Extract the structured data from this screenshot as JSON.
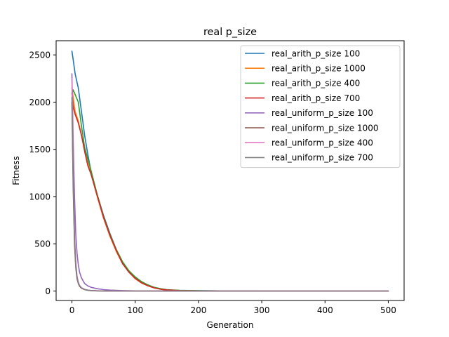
{
  "chart_data": {
    "type": "line",
    "title": "real p_size",
    "xlabel": "Generation",
    "ylabel": "Fitness",
    "xlim": [
      -25,
      525
    ],
    "ylim": [
      -100,
      2650
    ],
    "xticks": [
      0,
      100,
      200,
      300,
      400,
      500
    ],
    "yticks": [
      0,
      500,
      1000,
      1500,
      2000,
      2500
    ],
    "grid": false,
    "legend_position": "upper-right",
    "series": [
      {
        "name": "real_arith_p_size 100",
        "color": "#1f77b4",
        "points": [
          [
            0,
            2540
          ],
          [
            2,
            2450
          ],
          [
            5,
            2300
          ],
          [
            10,
            2150
          ],
          [
            15,
            1900
          ],
          [
            20,
            1650
          ],
          [
            25,
            1450
          ],
          [
            30,
            1270
          ],
          [
            40,
            1020
          ],
          [
            50,
            800
          ],
          [
            60,
            610
          ],
          [
            70,
            440
          ],
          [
            80,
            300
          ],
          [
            90,
            210
          ],
          [
            100,
            140
          ],
          [
            110,
            90
          ],
          [
            120,
            60
          ],
          [
            130,
            35
          ],
          [
            140,
            20
          ],
          [
            150,
            12
          ],
          [
            170,
            6
          ],
          [
            200,
            3
          ],
          [
            250,
            1
          ],
          [
            300,
            0
          ],
          [
            400,
            0
          ],
          [
            500,
            0
          ]
        ]
      },
      {
        "name": "real_arith_p_size 1000",
        "color": "#ff7f0e",
        "points": [
          [
            0,
            2150
          ],
          [
            2,
            2050
          ],
          [
            5,
            1900
          ],
          [
            10,
            1800
          ],
          [
            15,
            1650
          ],
          [
            20,
            1500
          ],
          [
            25,
            1350
          ],
          [
            30,
            1250
          ],
          [
            40,
            1000
          ],
          [
            50,
            770
          ],
          [
            60,
            580
          ],
          [
            70,
            420
          ],
          [
            80,
            290
          ],
          [
            90,
            200
          ],
          [
            100,
            130
          ],
          [
            110,
            85
          ],
          [
            120,
            55
          ],
          [
            130,
            33
          ],
          [
            140,
            20
          ],
          [
            150,
            12
          ],
          [
            170,
            5
          ],
          [
            200,
            2
          ],
          [
            250,
            1
          ],
          [
            300,
            0
          ],
          [
            400,
            0
          ],
          [
            500,
            0
          ]
        ]
      },
      {
        "name": "real_arith_p_size 400",
        "color": "#2ca02c",
        "points": [
          [
            0,
            2080
          ],
          [
            2,
            2130
          ],
          [
            5,
            2080
          ],
          [
            10,
            2000
          ],
          [
            15,
            1750
          ],
          [
            20,
            1520
          ],
          [
            25,
            1400
          ],
          [
            30,
            1280
          ],
          [
            40,
            1020
          ],
          [
            50,
            790
          ],
          [
            60,
            600
          ],
          [
            70,
            440
          ],
          [
            80,
            310
          ],
          [
            90,
            215
          ],
          [
            100,
            150
          ],
          [
            110,
            100
          ],
          [
            120,
            65
          ],
          [
            130,
            40
          ],
          [
            140,
            25
          ],
          [
            150,
            15
          ],
          [
            170,
            7
          ],
          [
            200,
            3
          ],
          [
            250,
            1
          ],
          [
            300,
            0
          ],
          [
            400,
            0
          ],
          [
            500,
            0
          ]
        ]
      },
      {
        "name": "real_arith_p_size 700",
        "color": "#d62728",
        "points": [
          [
            0,
            2100
          ],
          [
            2,
            1950
          ],
          [
            5,
            1870
          ],
          [
            10,
            1780
          ],
          [
            15,
            1650
          ],
          [
            20,
            1480
          ],
          [
            25,
            1330
          ],
          [
            30,
            1240
          ],
          [
            40,
            1010
          ],
          [
            50,
            780
          ],
          [
            60,
            590
          ],
          [
            70,
            430
          ],
          [
            80,
            290
          ],
          [
            90,
            200
          ],
          [
            100,
            135
          ],
          [
            110,
            88
          ],
          [
            120,
            56
          ],
          [
            130,
            34
          ],
          [
            140,
            20
          ],
          [
            150,
            12
          ],
          [
            170,
            5
          ],
          [
            200,
            2
          ],
          [
            250,
            1
          ],
          [
            300,
            0
          ],
          [
            400,
            0
          ],
          [
            500,
            0
          ]
        ]
      },
      {
        "name": "real_uniform_p_size 100",
        "color": "#9467bd",
        "points": [
          [
            0,
            2300
          ],
          [
            2,
            1600
          ],
          [
            4,
            1000
          ],
          [
            6,
            600
          ],
          [
            8,
            400
          ],
          [
            10,
            280
          ],
          [
            12,
            200
          ],
          [
            15,
            140
          ],
          [
            20,
            80
          ],
          [
            25,
            55
          ],
          [
            30,
            40
          ],
          [
            40,
            25
          ],
          [
            50,
            15
          ],
          [
            60,
            10
          ],
          [
            80,
            5
          ],
          [
            100,
            2
          ],
          [
            150,
            1
          ],
          [
            200,
            0
          ],
          [
            300,
            0
          ],
          [
            400,
            0
          ],
          [
            500,
            0
          ]
        ]
      },
      {
        "name": "real_uniform_p_size 1000",
        "color": "#8c564b",
        "points": [
          [
            0,
            2000
          ],
          [
            2,
            1100
          ],
          [
            4,
            500
          ],
          [
            6,
            250
          ],
          [
            8,
            130
          ],
          [
            10,
            80
          ],
          [
            12,
            50
          ],
          [
            15,
            30
          ],
          [
            20,
            15
          ],
          [
            25,
            8
          ],
          [
            30,
            5
          ],
          [
            40,
            2
          ],
          [
            50,
            1
          ],
          [
            70,
            0
          ],
          [
            100,
            0
          ],
          [
            200,
            0
          ],
          [
            300,
            0
          ],
          [
            400,
            0
          ],
          [
            500,
            0
          ]
        ]
      },
      {
        "name": "real_uniform_p_size 400",
        "color": "#e377c2",
        "points": [
          [
            0,
            2250
          ],
          [
            2,
            1300
          ],
          [
            4,
            600
          ],
          [
            6,
            300
          ],
          [
            8,
            160
          ],
          [
            10,
            95
          ],
          [
            12,
            60
          ],
          [
            15,
            35
          ],
          [
            20,
            18
          ],
          [
            25,
            10
          ],
          [
            30,
            6
          ],
          [
            40,
            3
          ],
          [
            50,
            1
          ],
          [
            70,
            0
          ],
          [
            100,
            0
          ],
          [
            200,
            0
          ],
          [
            300,
            0
          ],
          [
            400,
            0
          ],
          [
            500,
            0
          ]
        ]
      },
      {
        "name": "real_uniform_p_size 700",
        "color": "#7f7f7f",
        "points": [
          [
            0,
            2050
          ],
          [
            2,
            1200
          ],
          [
            4,
            550
          ],
          [
            6,
            280
          ],
          [
            8,
            140
          ],
          [
            10,
            85
          ],
          [
            12,
            55
          ],
          [
            15,
            32
          ],
          [
            20,
            16
          ],
          [
            25,
            9
          ],
          [
            30,
            5
          ],
          [
            40,
            2
          ],
          [
            50,
            1
          ],
          [
            70,
            0
          ],
          [
            100,
            0
          ],
          [
            200,
            0
          ],
          [
            300,
            0
          ],
          [
            400,
            0
          ],
          [
            500,
            0
          ]
        ]
      }
    ]
  }
}
